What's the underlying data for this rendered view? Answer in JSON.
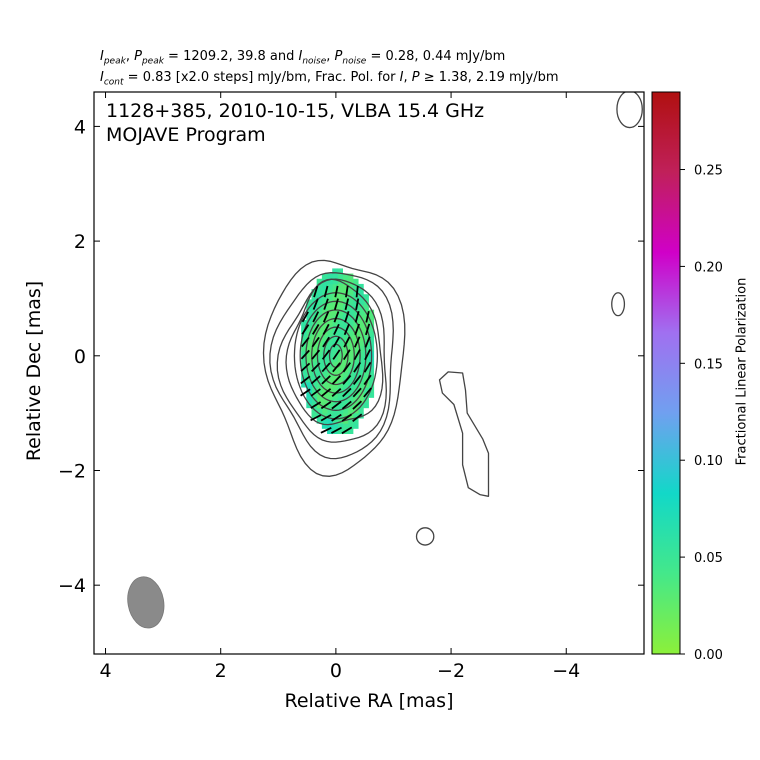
{
  "header": {
    "line1": "I_peak, P_peak = 1209.2, 39.8 and I_noise, P_noise = 0.28, 0.44 mJy/bm",
    "line2": "I_cont = 0.83 [x2.0 steps] mJy/bm, Frac. Pol. for I, P ≥ 1.38, 2.19 mJy/bm"
  },
  "overlay": {
    "line1": "1128+385, 2010-10-15, VLBA 15.4 GHz",
    "line2": "MOJAVE Program"
  },
  "colors": {
    "contour": "#444444",
    "beam": "#8a8a8a",
    "evpa": "#000000",
    "colormap": [
      "#8cf03a",
      "#44e88a",
      "#12d8c8",
      "#70a0f0",
      "#a070f0",
      "#d000c8",
      "#c0205a",
      "#b01010"
    ]
  },
  "chart_data": {
    "type": "heatmap",
    "title": "1128+385, 2010-10-15, VLBA 15.4 GHz",
    "subtitle": "MOJAVE Program",
    "xlabel": "Relative RA [mas]",
    "ylabel": "Relative Dec [mas]",
    "xlim": [
      4.2,
      -5.35
    ],
    "ylim": [
      -5.2,
      4.6
    ],
    "x_ticks": [
      4,
      2,
      0,
      -2,
      -4
    ],
    "y_ticks": [
      4,
      2,
      0,
      -2,
      -4
    ],
    "x_tick_labels": [
      "4",
      "2",
      "0",
      "−2",
      "−4"
    ],
    "y_tick_labels": [
      "4",
      "2",
      "0",
      "−2",
      "−4"
    ],
    "colorbar": {
      "label": "Fractional Linear Polarization",
      "range": [
        0.0,
        0.29
      ],
      "ticks": [
        0.0,
        0.05,
        0.1,
        0.15,
        0.2,
        0.25
      ],
      "tick_labels": [
        "0.00",
        "0.05",
        "0.10",
        "0.15",
        "0.20",
        "0.25"
      ]
    },
    "core": {
      "center": [
        0.0,
        0.0
      ],
      "contour_levels_mJy": [
        0.83,
        1.66,
        3.32,
        6.64,
        13.28,
        26.56,
        53.12,
        106.24,
        212.48,
        424.96,
        849.92
      ],
      "contour_semi_axes_mas": [
        [
          1.2,
          1.85
        ],
        [
          1.05,
          1.62
        ],
        [
          0.93,
          1.42
        ],
        [
          0.82,
          1.25
        ],
        [
          0.72,
          1.1
        ],
        [
          0.62,
          0.95
        ],
        [
          0.52,
          0.8
        ],
        [
          0.42,
          0.65
        ],
        [
          0.32,
          0.5
        ],
        [
          0.21,
          0.34
        ],
        [
          0.11,
          0.2
        ]
      ]
    },
    "jet_contour": [
      [
        -1.95,
        -0.28
      ],
      [
        -2.2,
        -0.3
      ],
      [
        -2.25,
        -0.6
      ],
      [
        -2.28,
        -1.0
      ],
      [
        -2.55,
        -1.45
      ],
      [
        -2.65,
        -1.7
      ],
      [
        -2.65,
        -2.45
      ],
      [
        -2.5,
        -2.42
      ],
      [
        -2.3,
        -2.3
      ],
      [
        -2.2,
        -1.9
      ],
      [
        -2.2,
        -1.35
      ],
      [
        -2.05,
        -0.85
      ],
      [
        -1.85,
        -0.65
      ],
      [
        -1.8,
        -0.42
      ]
    ],
    "isolated_contours": [
      {
        "center": [
          -1.55,
          -3.15
        ],
        "semi_axes": [
          0.15,
          0.15
        ]
      },
      {
        "center": [
          -4.9,
          0.9
        ],
        "semi_axes": [
          0.11,
          0.2
        ]
      },
      {
        "center": [
          -5.1,
          4.3
        ],
        "semi_axes": [
          0.22,
          0.32
        ]
      }
    ],
    "polarization": {
      "center": [
        0.0,
        0.0
      ],
      "semi_axes_mas": [
        0.66,
        1.45
      ],
      "frac_pol_range": [
        0.03,
        0.08
      ],
      "frac_pol_typical": 0.04
    },
    "beam": {
      "center": [
        3.3,
        -4.3
      ],
      "major_mas": 0.9,
      "minor_mas": 0.62,
      "position_angle_deg": 10
    }
  }
}
